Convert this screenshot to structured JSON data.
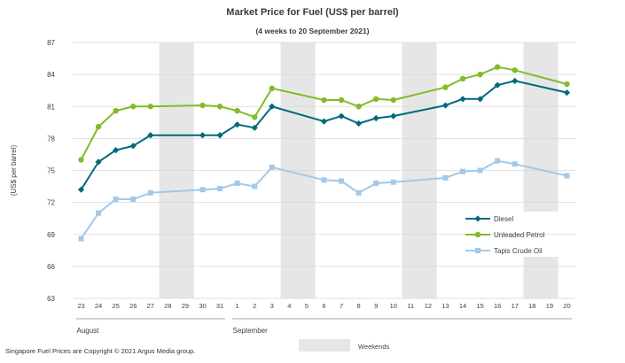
{
  "chart_data": {
    "type": "line",
    "title": "Market Price for Fuel  (US$  per barrel)",
    "subtitle": "(4 weeks to 20 September 2021)",
    "ylabel": "(US$ per barrel)",
    "xlabel": "",
    "ylim": [
      63,
      87
    ],
    "yticks": [
      "87",
      "84",
      "81",
      "78",
      "75",
      "72",
      "69",
      "66",
      "63"
    ],
    "categories": [
      "23",
      "24",
      "25",
      "26",
      "27",
      "28",
      "29",
      "30",
      "31",
      "1",
      "2",
      "3",
      "4",
      "5",
      "6",
      "7",
      "8",
      "9",
      "10",
      "11",
      "12",
      "13",
      "14",
      "15",
      "16",
      "17",
      "18",
      "19",
      "20"
    ],
    "month_labels": [
      {
        "label": "August",
        "start_index": 0
      },
      {
        "label": "September",
        "start_index": 9
      }
    ],
    "weekend_bands": [
      [
        5,
        6
      ],
      [
        12,
        13
      ],
      [
        19,
        20
      ],
      [
        26,
        27
      ]
    ],
    "weekend_label": "Weekends",
    "series": [
      {
        "name": "Diesel",
        "color": "#006a7c",
        "marker": "diamond",
        "values": [
          73.2,
          75.8,
          76.9,
          77.3,
          78.3,
          null,
          null,
          78.3,
          78.3,
          79.3,
          79.0,
          81.0,
          null,
          null,
          79.6,
          80.1,
          79.4,
          79.9,
          80.1,
          null,
          null,
          81.1,
          81.7,
          81.7,
          83.0,
          83.4,
          null,
          null,
          82.3
        ]
      },
      {
        "name": "Unleaded Petrol",
        "color": "#80bc2a",
        "marker": "circle",
        "values": [
          76.0,
          79.1,
          80.6,
          81.0,
          81.0,
          null,
          null,
          81.1,
          81.0,
          80.6,
          80.0,
          82.7,
          null,
          null,
          81.6,
          81.6,
          81.0,
          81.7,
          81.6,
          null,
          null,
          82.8,
          83.6,
          84.0,
          84.7,
          84.4,
          null,
          null,
          83.1
        ]
      },
      {
        "name": "Tapis Crude Oil",
        "color": "#a3c8e8",
        "marker": "square",
        "values": [
          68.6,
          71.0,
          72.3,
          72.3,
          72.9,
          null,
          null,
          73.2,
          73.3,
          73.8,
          73.5,
          75.3,
          null,
          null,
          74.1,
          74.0,
          72.9,
          73.8,
          73.9,
          null,
          null,
          74.3,
          74.9,
          75.0,
          75.9,
          75.6,
          null,
          null,
          74.5
        ]
      }
    ],
    "legend_position": "bottom-right"
  },
  "footer": "Singapore  Fuel Prices are Copyright © 2021  Argus Media group."
}
